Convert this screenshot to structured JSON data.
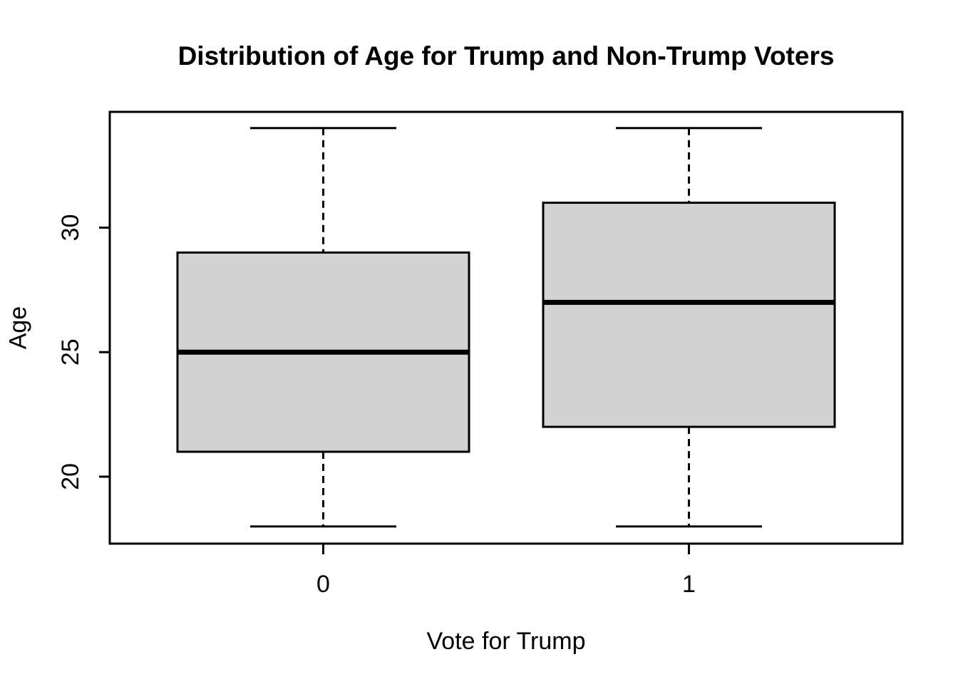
{
  "chart_data": {
    "type": "boxplot",
    "title": "Distribution of Age for Trump and Non-Trump Voters",
    "xlabel": "Vote for Trump",
    "ylabel": "Age",
    "categories": [
      "0",
      "1"
    ],
    "groups": [
      {
        "label": "0",
        "min": 18,
        "q1": 21,
        "median": 25,
        "q3": 29,
        "max": 34
      },
      {
        "label": "1",
        "min": 18,
        "q1": 22,
        "median": 27,
        "q3": 31,
        "max": 34
      }
    ],
    "yticks": [
      20,
      25,
      30
    ],
    "ylim": [
      17.31,
      34.65
    ],
    "grid": false,
    "legend": "none",
    "colors": {
      "box_fill": "#d3d3d3",
      "stroke": "#000000",
      "background": "#ffffff"
    }
  }
}
